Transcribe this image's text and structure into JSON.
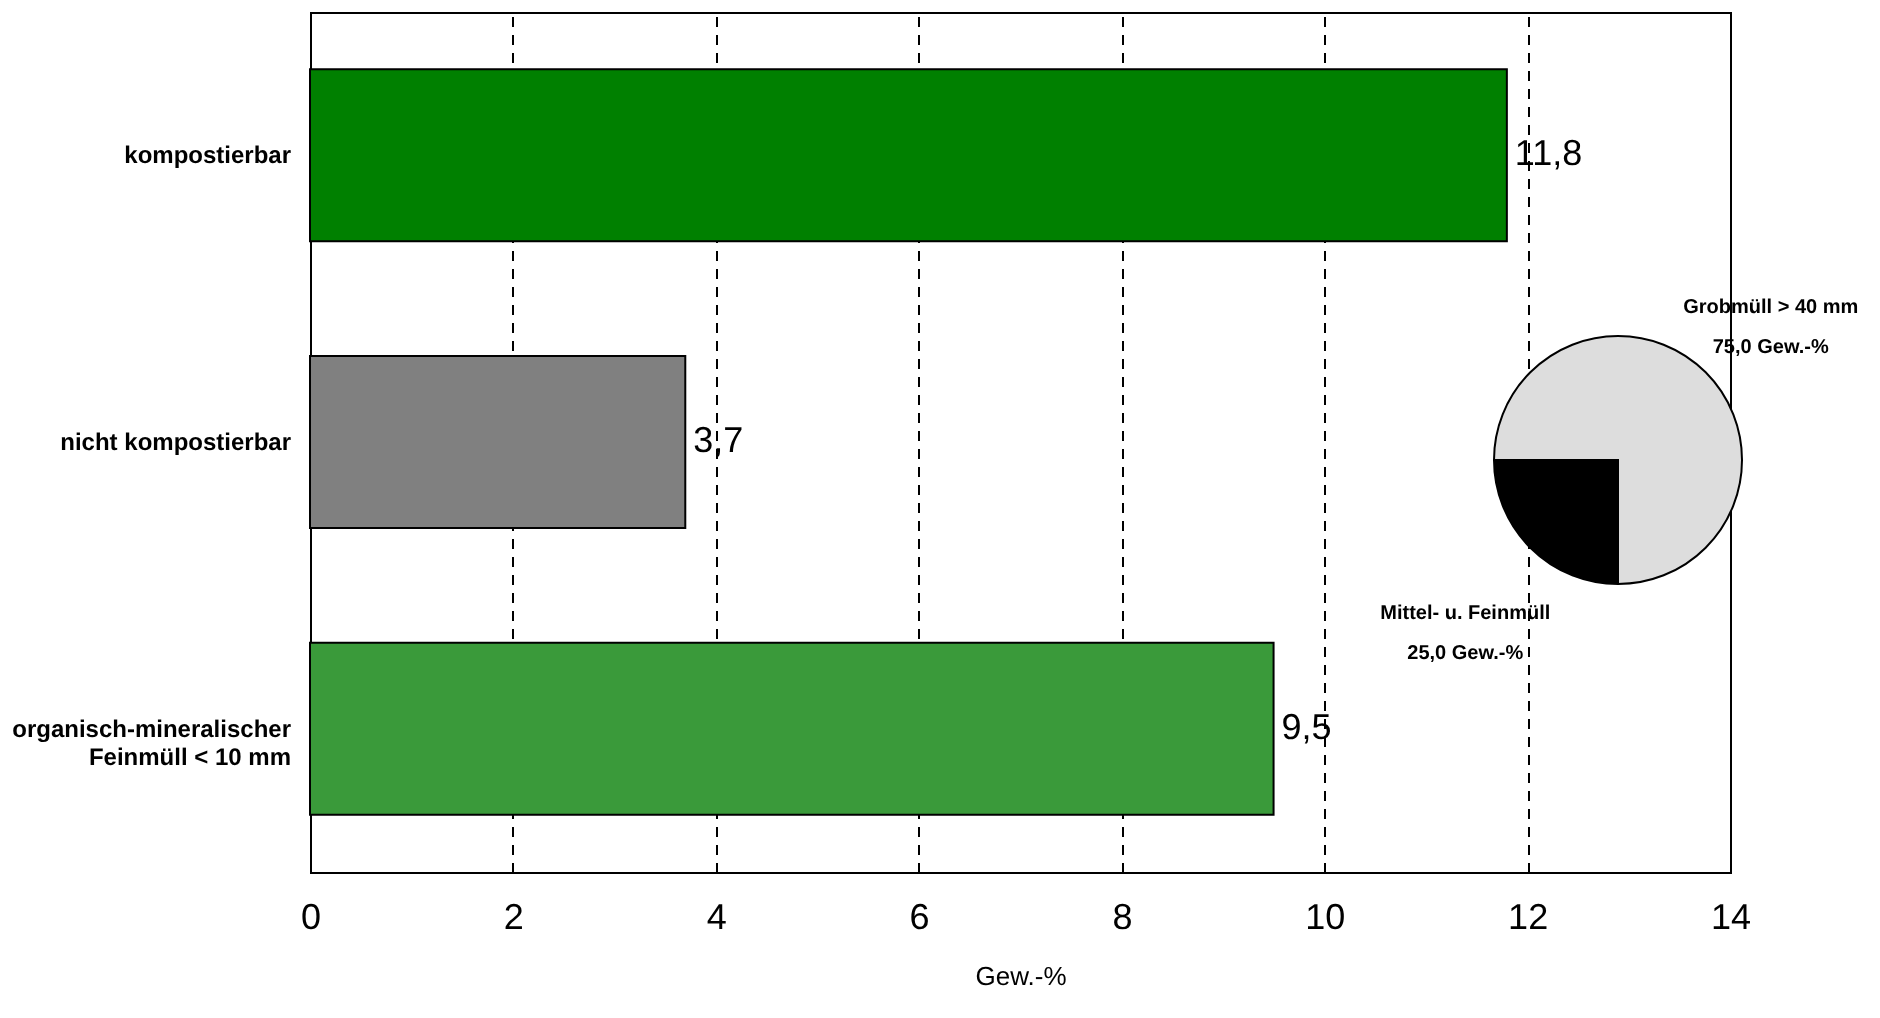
{
  "chart_data": [
    {
      "type": "bar",
      "orientation": "horizontal",
      "xlabel": "Gew.-%",
      "categories": [
        "kompostierbar",
        "nicht kompostierbar",
        "organisch-mineralischer Feinmüll < 10 mm"
      ],
      "values": [
        11.8,
        3.7,
        9.5
      ],
      "colors": [
        "#008000",
        "#808080",
        "#3a9a3a"
      ],
      "value_labels": [
        "11,8",
        "3,7",
        "9,5"
      ],
      "xlim": [
        0,
        14
      ],
      "xticks": [
        0,
        2,
        4,
        6,
        8,
        10,
        12,
        14
      ],
      "grid": "x"
    },
    {
      "type": "pie",
      "categories": [
        "Grobmüll > 40 mm",
        "Mittel- u. Feinmüll"
      ],
      "values": [
        75,
        25
      ],
      "colors": [
        "#dddddd",
        "#000000"
      ],
      "value_labels": [
        "75,0 Gew.-%",
        "25,0 Gew.-%"
      ]
    }
  ]
}
